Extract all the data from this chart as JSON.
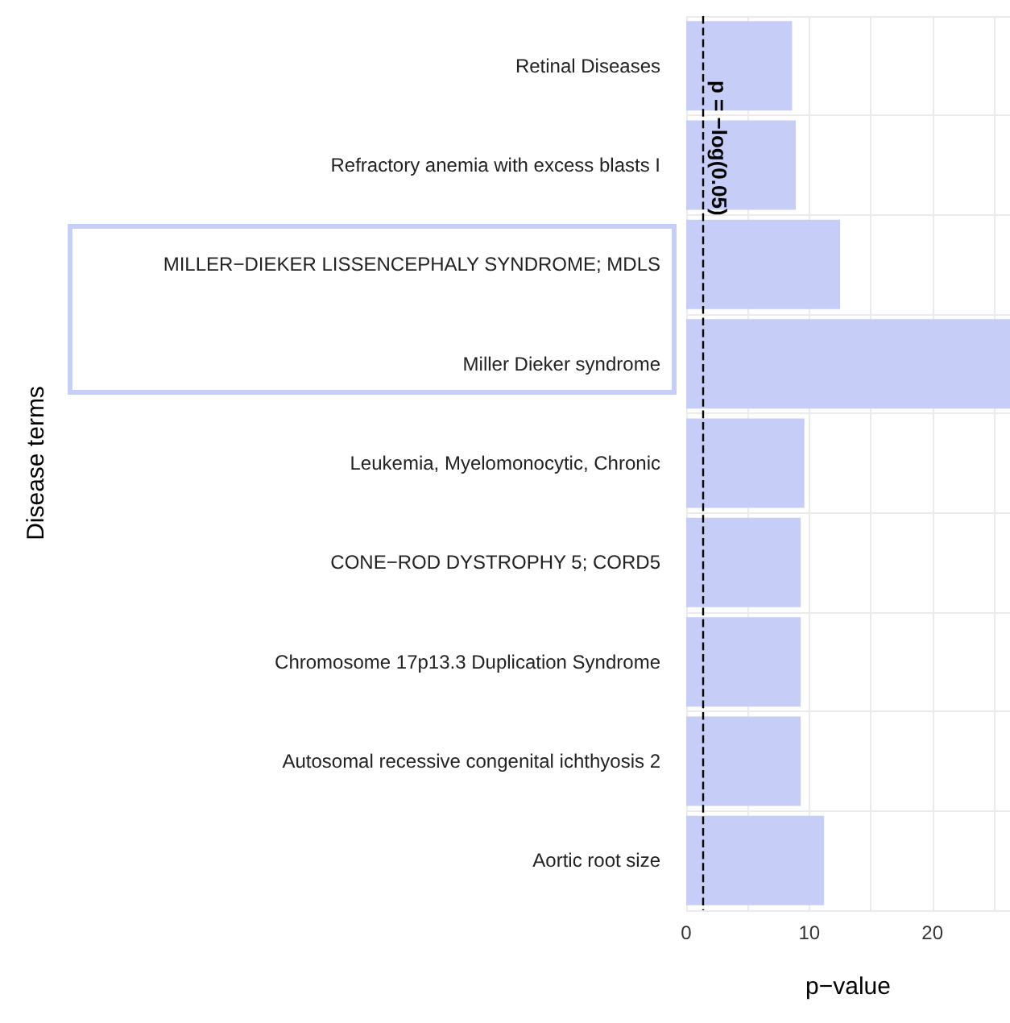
{
  "chart_data": {
    "type": "bar",
    "orientation": "horizontal",
    "xlabel": "p−value",
    "ylabel": "Disease terms",
    "categories": [
      "Retinal Diseases",
      "Refractory anemia with excess blasts I",
      "MILLER−DIEKER LISSENCEPHALY SYNDROME; MDLS",
      "Miller Dieker syndrome",
      "Leukemia, Myelomonocytic, Chronic",
      "CONE−ROD DYSTROPHY 5; CORD5",
      "Chromosome 17p13.3 Duplication Syndrome",
      "Autosomal recessive congenital ichthyosis 2",
      "Aortic root size"
    ],
    "values": [
      8.6,
      8.9,
      12.5,
      26.3,
      9.6,
      9.3,
      9.3,
      9.3,
      11.2
    ],
    "color": "#c6cdf6",
    "xlim": [
      0,
      26.3
    ],
    "xticks": [
      0,
      {
        "value": 5,
        "label": null
      },
      10,
      {
        "value": 15,
        "label": null
      },
      20,
      {
        "value": 25,
        "label": null
      }
    ],
    "grid": true,
    "ref_lines": [
      {
        "axis": "x",
        "value": 1.3,
        "label": "p = −log(0.05)",
        "line_style": "dashed",
        "color": "#000000"
      }
    ]
  }
}
